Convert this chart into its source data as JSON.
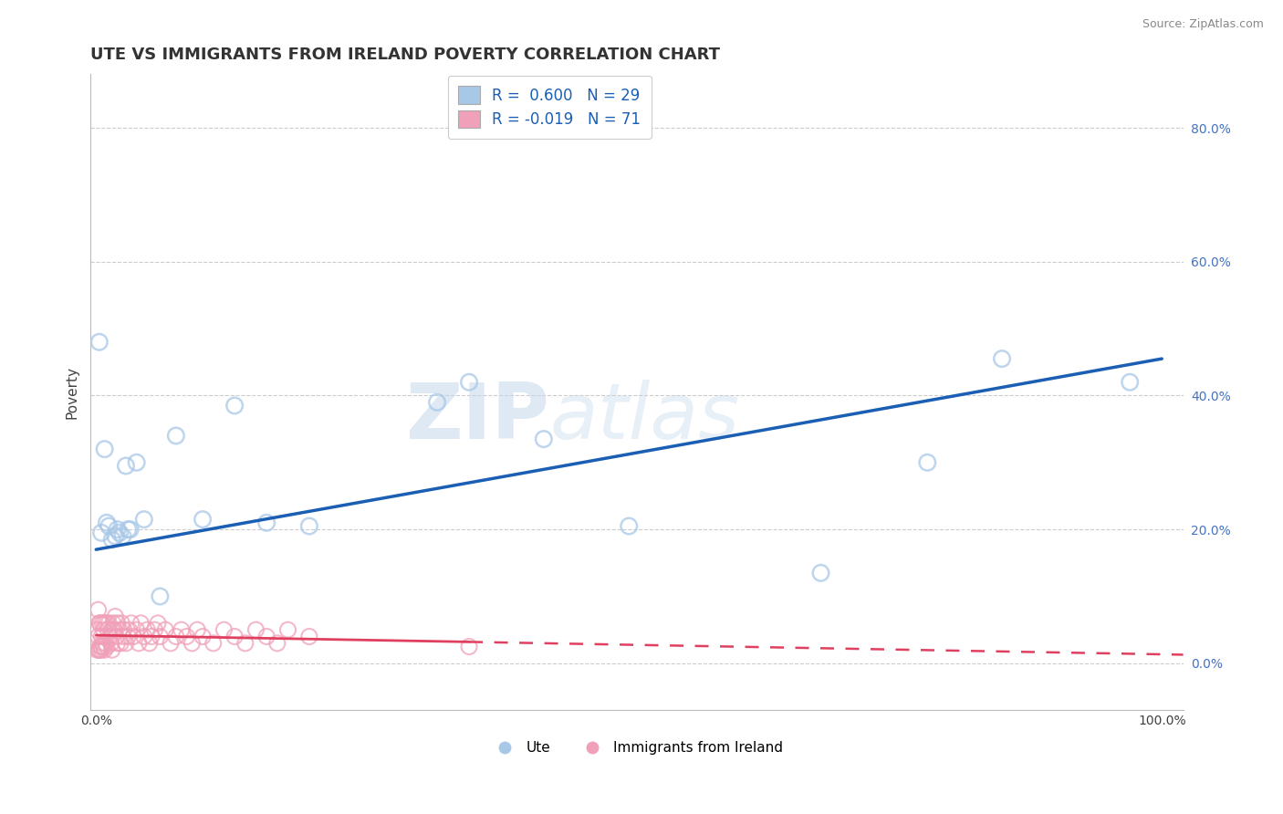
{
  "title": "UTE VS IMMIGRANTS FROM IRELAND POVERTY CORRELATION CHART",
  "source": "Source: ZipAtlas.com",
  "ylabel": "Poverty",
  "xlim": [
    -0.005,
    1.02
  ],
  "ylim": [
    -0.07,
    0.88
  ],
  "yticks": [
    0.0,
    0.2,
    0.4,
    0.6,
    0.8
  ],
  "xticks": [
    0.0,
    1.0
  ],
  "legend_r_ute": "0.600",
  "legend_n_ute": "29",
  "legend_r_ireland": "-0.019",
  "legend_n_ireland": "71",
  "ute_color": "#a8c8e8",
  "ireland_color": "#f0a0b8",
  "trendline_ute_color": "#1a5fb4",
  "trendline_ireland_color": "#e04060",
  "watermark_zip": "ZIP",
  "watermark_atlas": "atlas",
  "background_color": "#ffffff",
  "grid_color": "#cccccc",
  "ute_points_x": [
    0.003,
    0.005,
    0.008,
    0.01,
    0.012,
    0.015,
    0.018,
    0.02,
    0.022,
    0.025,
    0.028,
    0.03,
    0.032,
    0.038,
    0.045,
    0.06,
    0.075,
    0.1,
    0.13,
    0.16,
    0.2,
    0.35,
    0.5,
    0.68,
    0.85,
    0.97,
    0.32,
    0.42,
    0.78
  ],
  "ute_points_y": [
    0.48,
    0.195,
    0.32,
    0.21,
    0.205,
    0.185,
    0.19,
    0.2,
    0.195,
    0.19,
    0.295,
    0.2,
    0.2,
    0.3,
    0.215,
    0.1,
    0.34,
    0.215,
    0.385,
    0.21,
    0.205,
    0.42,
    0.205,
    0.135,
    0.455,
    0.42,
    0.39,
    0.335,
    0.3
  ],
  "ireland_points_x": [
    0.001,
    0.001,
    0.002,
    0.002,
    0.003,
    0.003,
    0.003,
    0.004,
    0.004,
    0.005,
    0.005,
    0.005,
    0.006,
    0.006,
    0.007,
    0.007,
    0.008,
    0.008,
    0.009,
    0.01,
    0.01,
    0.011,
    0.012,
    0.013,
    0.014,
    0.015,
    0.015,
    0.016,
    0.017,
    0.018,
    0.019,
    0.02,
    0.02,
    0.022,
    0.023,
    0.024,
    0.025,
    0.026,
    0.028,
    0.03,
    0.031,
    0.033,
    0.035,
    0.038,
    0.04,
    0.042,
    0.045,
    0.048,
    0.05,
    0.052,
    0.055,
    0.058,
    0.06,
    0.065,
    0.07,
    0.075,
    0.08,
    0.085,
    0.09,
    0.095,
    0.1,
    0.11,
    0.12,
    0.13,
    0.14,
    0.15,
    0.16,
    0.17,
    0.18,
    0.2,
    0.35
  ],
  "ireland_points_y": [
    0.05,
    0.02,
    0.08,
    0.04,
    0.02,
    0.06,
    0.02,
    0.025,
    0.06,
    0.02,
    0.04,
    0.025,
    0.03,
    0.06,
    0.025,
    0.05,
    0.02,
    0.06,
    0.03,
    0.025,
    0.06,
    0.05,
    0.06,
    0.04,
    0.03,
    0.05,
    0.02,
    0.06,
    0.05,
    0.07,
    0.04,
    0.03,
    0.06,
    0.05,
    0.03,
    0.06,
    0.04,
    0.05,
    0.03,
    0.04,
    0.05,
    0.06,
    0.04,
    0.05,
    0.03,
    0.06,
    0.04,
    0.05,
    0.03,
    0.04,
    0.05,
    0.06,
    0.04,
    0.05,
    0.03,
    0.04,
    0.05,
    0.04,
    0.03,
    0.05,
    0.04,
    0.03,
    0.05,
    0.04,
    0.03,
    0.05,
    0.04,
    0.03,
    0.05,
    0.04,
    0.025
  ],
  "trendline_ute_x0": 0.0,
  "trendline_ute_y0": 0.17,
  "trendline_ute_x1": 1.0,
  "trendline_ute_y1": 0.455,
  "trendline_ire_x0": 0.0,
  "trendline_ire_y0": 0.042,
  "trendline_ire_x1": 0.35,
  "trendline_ire_y1": 0.032,
  "title_fontsize": 13,
  "axis_label_fontsize": 11,
  "tick_fontsize": 10,
  "source_fontsize": 9
}
